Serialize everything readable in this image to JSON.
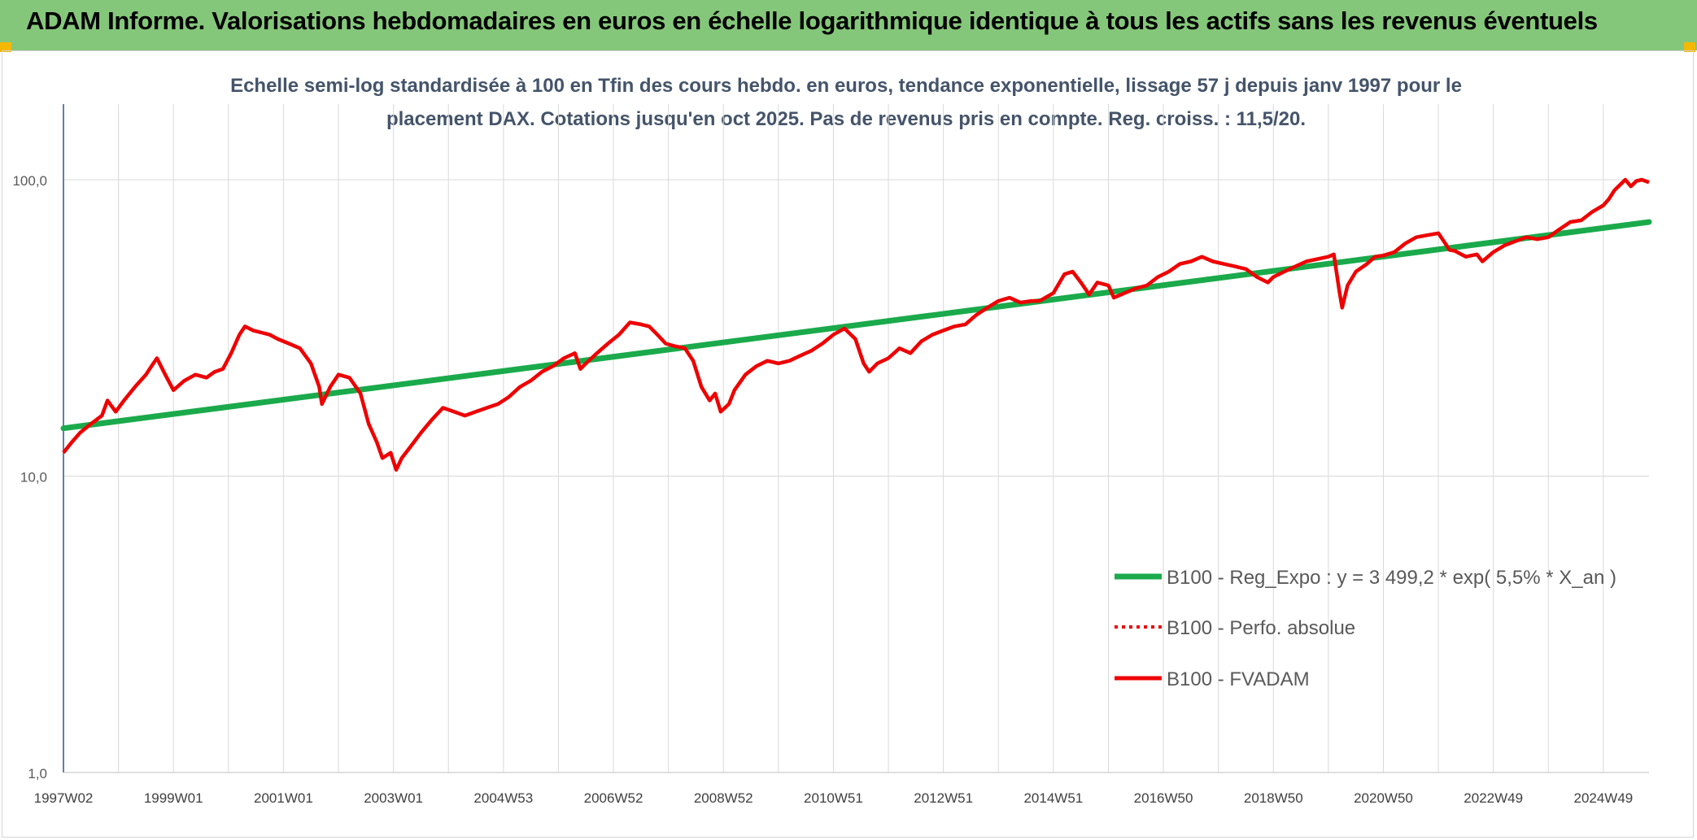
{
  "header": {
    "title": "ADAM Informe. Valorisations hebdomadaires en euros en échelle logarithmique identique à tous les actifs sans les revenus éventuels"
  },
  "colors": {
    "banner": "#85c77a",
    "corner": "#f5b800",
    "regression": "#1aaa4b",
    "fvadam": "#ee0000",
    "perf": "#ee0000",
    "subtitle": "#44546a",
    "grid": "#d9d9d9",
    "axis": "#2f5597"
  },
  "chart_data": {
    "type": "line",
    "subtitle_line1": "Echelle semi-log standardisée à 100 en Tfin des cours hebdo. en euros, tendance exponentielle, lissage 57 j depuis janv 1997 pour le",
    "subtitle_line2": "placement DAX. Cotations jusqu'en oct 2025. Pas de revenus pris en compte. Reg. croiss. : 11,5/20.",
    "y_scale": "log",
    "ylim": [
      1,
      180
    ],
    "y_ticks": [
      "1,0",
      "10,0",
      "100,0"
    ],
    "y_tick_values": [
      1,
      10,
      100
    ],
    "xlim": [
      1997.0,
      2025.83
    ],
    "x_ticks": [
      "1997W02",
      "1999W01",
      "2001W01",
      "2003W01",
      "2004W53",
      "2006W52",
      "2008W52",
      "2010W51",
      "2012W51",
      "2014W51",
      "2016W50",
      "2018W50",
      "2020W50",
      "2022W49",
      "2024W49"
    ],
    "x_tick_values": [
      1997.0,
      1999.0,
      2001.0,
      2003.0,
      2005.0,
      2007.0,
      2009.0,
      2011.0,
      2013.0,
      2015.0,
      2017.0,
      2019.0,
      2021.0,
      2023.0,
      2025.0
    ],
    "grid": true,
    "legend_position": "bottom-right",
    "legend": [
      {
        "label": "B100 - Reg_Expo : y = 3 499,2 * exp( 5,5% *  X_an )",
        "style": "thick-solid",
        "color": "#1aaa4b"
      },
      {
        "label": "B100 - Perfo. absolue",
        "style": "dotted",
        "color": "#ee0000"
      },
      {
        "label": "B100 - FVADAM",
        "style": "solid",
        "color": "#ee0000"
      }
    ],
    "series": [
      {
        "name": "B100 - Reg_Expo : y = 3 499,2 * exp( 5,5% *  X_an )",
        "x": [
          1997.0,
          2025.83
        ],
        "y": [
          14.5,
          72.0
        ]
      },
      {
        "name": "B100 - FVADAM",
        "x": [
          1997.0,
          1997.15,
          1997.3,
          1997.5,
          1997.7,
          1997.8,
          1997.95,
          1998.1,
          1998.3,
          1998.5,
          1998.6,
          1998.7,
          1998.85,
          1999.0,
          1999.2,
          1999.4,
          1999.6,
          1999.75,
          1999.9,
          2000.05,
          2000.2,
          2000.3,
          2000.45,
          2000.6,
          2000.75,
          2000.9,
          2001.1,
          2001.3,
          2001.5,
          2001.65,
          2001.7,
          2001.85,
          2002.0,
          2002.2,
          2002.4,
          2002.55,
          2002.7,
          2002.8,
          2002.95,
          2003.05,
          2003.15,
          2003.3,
          2003.5,
          2003.7,
          2003.9,
          2004.1,
          2004.3,
          2004.5,
          2004.7,
          2004.9,
          2005.1,
          2005.3,
          2005.5,
          2005.7,
          2005.9,
          2006.1,
          2006.3,
          2006.4,
          2006.5,
          2006.7,
          2006.9,
          2007.1,
          2007.3,
          2007.5,
          2007.65,
          2007.8,
          2007.95,
          2008.1,
          2008.3,
          2008.45,
          2008.6,
          2008.75,
          2008.85,
          2008.95,
          2009.1,
          2009.2,
          2009.4,
          2009.6,
          2009.8,
          2010.0,
          2010.2,
          2010.4,
          2010.6,
          2010.8,
          2011.0,
          2011.2,
          2011.4,
          2011.55,
          2011.65,
          2011.8,
          2012.0,
          2012.2,
          2012.4,
          2012.6,
          2012.8,
          2013.0,
          2013.2,
          2013.4,
          2013.6,
          2013.8,
          2014.0,
          2014.2,
          2014.4,
          2014.6,
          2014.75,
          2015.0,
          2015.2,
          2015.35,
          2015.5,
          2015.65,
          2015.8,
          2016.0,
          2016.1,
          2016.3,
          2016.5,
          2016.7,
          2016.9,
          2017.1,
          2017.3,
          2017.5,
          2017.7,
          2017.9,
          2018.1,
          2018.3,
          2018.5,
          2018.7,
          2018.9,
          2019.0,
          2019.2,
          2019.4,
          2019.6,
          2019.8,
          2020.0,
          2020.1,
          2020.2,
          2020.25,
          2020.35,
          2020.5,
          2020.7,
          2020.85,
          2021.0,
          2021.2,
          2021.4,
          2021.6,
          2021.8,
          2022.0,
          2022.1,
          2022.2,
          2022.3,
          2022.5,
          2022.7,
          2022.8,
          2023.0,
          2023.2,
          2023.4,
          2023.6,
          2023.8,
          2024.0,
          2024.2,
          2024.4,
          2024.6,
          2024.8,
          2025.0,
          2025.1,
          2025.2,
          2025.3,
          2025.4,
          2025.5,
          2025.6,
          2025.7,
          2025.83
        ],
        "y": [
          12.0,
          13.0,
          14.0,
          15.0,
          16.0,
          18.0,
          16.5,
          18.0,
          20.0,
          22.0,
          23.5,
          25.0,
          22.0,
          19.5,
          21.0,
          22.0,
          21.5,
          22.5,
          23.0,
          26.0,
          30.0,
          32.0,
          31.0,
          30.5,
          30.0,
          29.0,
          28.0,
          27.0,
          24.0,
          20.0,
          17.5,
          20.0,
          22.0,
          21.5,
          19.0,
          15.0,
          13.0,
          11.5,
          12.0,
          10.5,
          11.5,
          12.5,
          14.0,
          15.5,
          17.0,
          16.5,
          16.0,
          16.5,
          17.0,
          17.5,
          18.5,
          20.0,
          21.0,
          22.5,
          23.5,
          25.0,
          26.0,
          23.0,
          24.0,
          26.0,
          28.0,
          30.0,
          33.0,
          32.5,
          32.0,
          30.0,
          28.0,
          27.5,
          27.0,
          24.5,
          20.0,
          18.0,
          19.0,
          16.5,
          17.5,
          19.5,
          22.0,
          23.5,
          24.5,
          24.0,
          24.5,
          25.5,
          26.5,
          28.0,
          30.0,
          31.5,
          29.0,
          24.0,
          22.5,
          24.0,
          25.0,
          27.0,
          26.0,
          28.5,
          30.0,
          31.0,
          32.0,
          32.5,
          35.0,
          37.0,
          39.0,
          40.0,
          38.5,
          39.0,
          39.0,
          41.5,
          48.0,
          49.0,
          45.0,
          41.0,
          45.0,
          44.0,
          40.0,
          41.5,
          43.0,
          44.0,
          47.0,
          49.0,
          52.0,
          53.0,
          55.0,
          53.0,
          52.0,
          51.0,
          50.0,
          47.0,
          45.0,
          47.0,
          49.0,
          51.0,
          53.0,
          54.0,
          55.0,
          56.0,
          42.0,
          37.0,
          44.0,
          49.0,
          52.0,
          55.0,
          55.5,
          57.0,
          61.0,
          64.0,
          65.0,
          66.0,
          62.0,
          58.0,
          57.5,
          55.0,
          56.0,
          53.0,
          57.0,
          60.0,
          62.0,
          64.0,
          63.0,
          64.0,
          68.0,
          72.0,
          73.0,
          78.0,
          82.0,
          86.0,
          92.0,
          96.0,
          100.0,
          95.0,
          99.0,
          100.0,
          98.0
        ]
      }
    ]
  }
}
